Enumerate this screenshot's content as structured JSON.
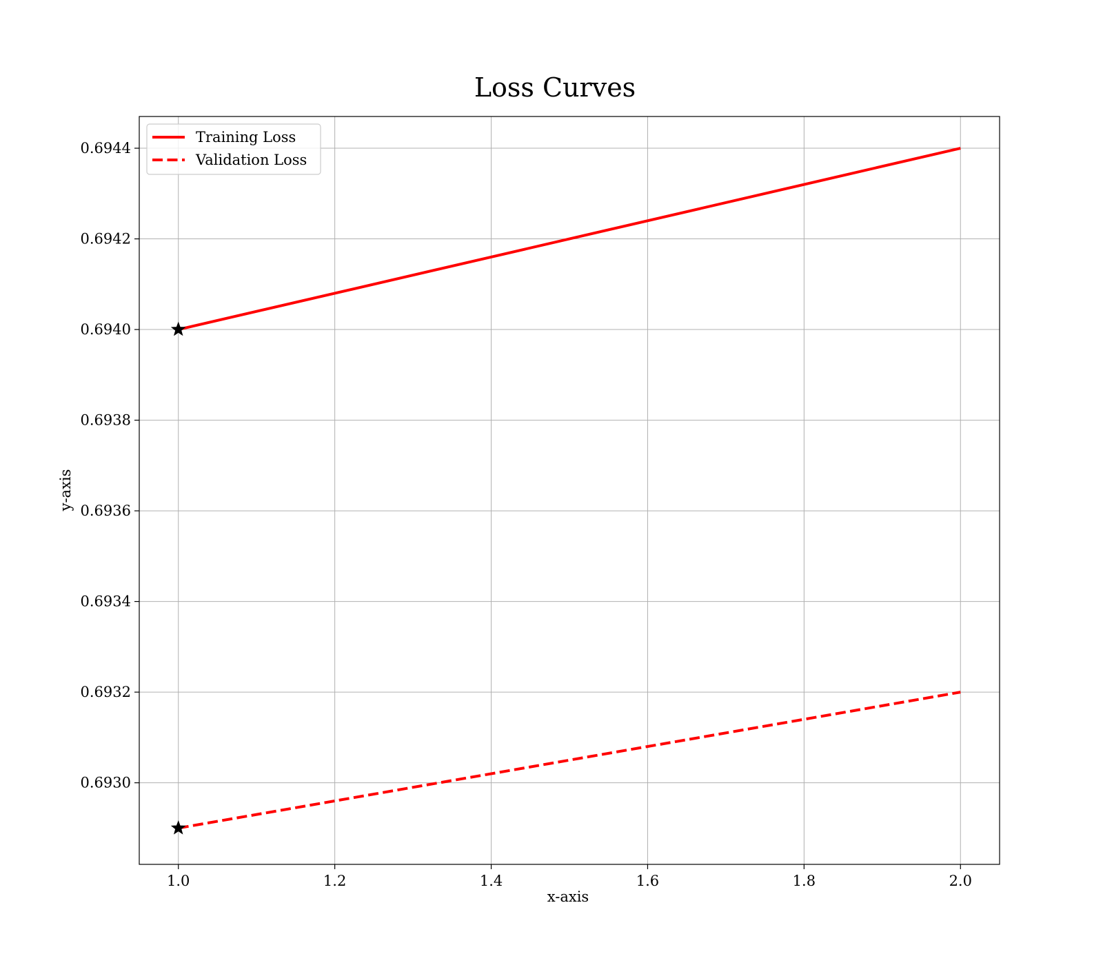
{
  "chart_data": {
    "type": "line",
    "title": "Loss Curves",
    "xlabel": "x-axis",
    "ylabel": "y-axis",
    "xlim": [
      0.95,
      2.05
    ],
    "ylim": [
      0.69282,
      0.69447
    ],
    "x_ticks": [
      1.0,
      1.2,
      1.4,
      1.6,
      1.8,
      2.0
    ],
    "y_ticks": [
      0.693,
      0.6932,
      0.6934,
      0.6936,
      0.6938,
      0.694,
      0.6942,
      0.6944
    ],
    "x_tick_labels": [
      "1.0",
      "1.2",
      "1.4",
      "1.6",
      "1.8",
      "2.0"
    ],
    "y_tick_labels": [
      "0.6930",
      "0.6932",
      "0.6934",
      "0.6936",
      "0.6938",
      "0.6940",
      "0.6942",
      "0.6944"
    ],
    "grid": true,
    "legend_position": "upper-left",
    "series": [
      {
        "name": "Training Loss",
        "x": [
          1.0,
          2.0
        ],
        "y": [
          0.694,
          0.6944
        ],
        "color": "#ff0000",
        "style": "solid",
        "start_marker": "star"
      },
      {
        "name": "Validation Loss",
        "x": [
          1.0,
          2.0
        ],
        "y": [
          0.6929,
          0.6932
        ],
        "color": "#ff0000",
        "style": "dashed",
        "start_marker": "star"
      }
    ]
  }
}
